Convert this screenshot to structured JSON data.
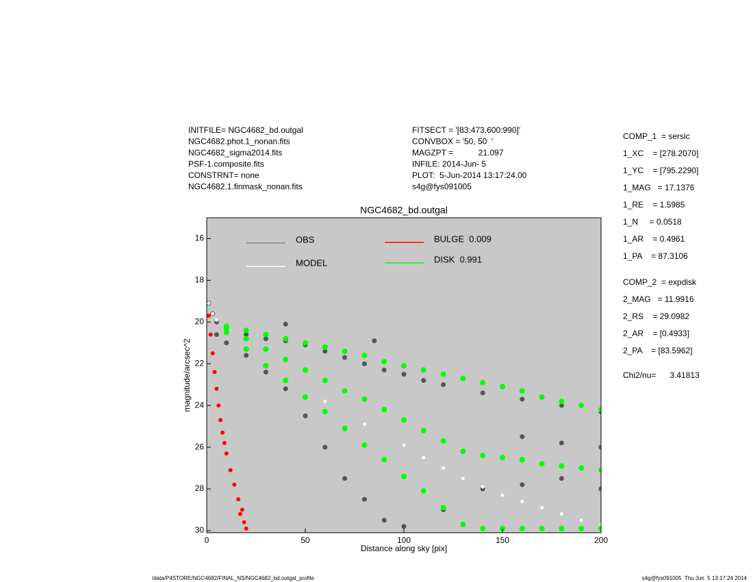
{
  "chart_data": {
    "type": "scatter",
    "title": "NGC4682_bd.outgal",
    "xlabel": "Distance along sky [pix]",
    "ylabel": "magnitude/arcsec^2",
    "xlim": [
      0,
      200
    ],
    "ylim": [
      15,
      30.1
    ],
    "y_inverted": true,
    "xticks": [
      0,
      50,
      100,
      150,
      200
    ],
    "yticks": [
      16,
      18,
      20,
      22,
      24,
      26,
      28,
      30
    ],
    "background": "#c8c8c8",
    "series": [
      {
        "name": "OBS",
        "color": "#555555",
        "x": [
          1,
          3,
          5,
          5,
          10,
          10,
          20,
          20,
          30,
          30,
          40,
          40,
          40,
          50,
          50,
          60,
          60,
          70,
          70,
          80,
          80,
          85,
          90,
          90,
          100,
          100,
          110,
          120,
          120,
          140,
          140,
          160,
          160,
          160,
          180,
          180,
          180,
          200,
          200,
          200
        ],
        "values": [
          19.1,
          19.6,
          20.0,
          20.6,
          20.2,
          21.0,
          20.6,
          21.6,
          20.8,
          22.4,
          20.9,
          23.2,
          20.1,
          21.1,
          24.5,
          21.4,
          26.0,
          21.7,
          27.5,
          22.0,
          28.5,
          20.9,
          22.3,
          29.5,
          22.5,
          29.8,
          22.8,
          23.0,
          29.0,
          23.4,
          28.0,
          23.7,
          25.5,
          27.8,
          24.0,
          25.8,
          27.5,
          24.3,
          26.0,
          28.0
        ]
      },
      {
        "name": "DISK  0.991",
        "color": "#00ff00",
        "x": [
          10,
          10,
          10,
          20,
          20,
          20,
          30,
          30,
          30,
          40,
          40,
          40,
          50,
          50,
          50,
          60,
          60,
          60,
          70,
          70,
          70,
          80,
          80,
          80,
          90,
          90,
          90,
          100,
          100,
          100,
          110,
          110,
          110,
          120,
          120,
          120,
          130,
          130,
          130,
          140,
          140,
          140,
          150,
          150,
          150,
          160,
          160,
          160,
          170,
          170,
          170,
          180,
          180,
          180,
          190,
          190,
          190,
          200,
          200,
          200
        ],
        "values": [
          20.2,
          20.3,
          20.5,
          20.4,
          20.8,
          21.3,
          20.6,
          21.3,
          22.1,
          20.8,
          21.8,
          22.8,
          21.0,
          22.3,
          23.6,
          21.2,
          22.8,
          24.3,
          21.4,
          23.3,
          25.1,
          21.6,
          23.7,
          25.9,
          21.9,
          24.2,
          26.6,
          22.1,
          24.7,
          27.4,
          22.3,
          25.2,
          28.1,
          22.5,
          25.7,
          28.9,
          22.7,
          26.2,
          29.7,
          22.9,
          26.4,
          29.9,
          23.1,
          26.5,
          29.9,
          23.3,
          26.6,
          29.9,
          23.6,
          26.8,
          29.9,
          23.8,
          26.9,
          29.9,
          24.0,
          27.0,
          29.9,
          24.2,
          27.1,
          29.9
        ]
      },
      {
        "name": "MODEL",
        "color": "#ffffff",
        "x": [
          1,
          3,
          5,
          60,
          80,
          100,
          110,
          120,
          130,
          140,
          150,
          160,
          170,
          180,
          190,
          200
        ],
        "values": [
          19.1,
          19.6,
          19.9,
          23.8,
          24.9,
          25.9,
          26.5,
          27.0,
          27.5,
          27.9,
          28.3,
          28.6,
          28.9,
          29.2,
          29.5,
          29.7
        ]
      },
      {
        "name": "BULGE  0.009",
        "color": "#ff0000",
        "x": [
          1,
          2,
          3,
          4,
          5,
          6,
          7,
          8,
          9,
          10,
          12,
          14,
          16,
          17,
          18,
          19,
          20
        ],
        "values": [
          19.7,
          20.6,
          21.5,
          22.4,
          23.2,
          24.0,
          24.7,
          25.3,
          25.8,
          26.3,
          27.1,
          27.8,
          28.5,
          29.2,
          29.0,
          29.6,
          29.9
        ]
      }
    ]
  },
  "header": {
    "left": [
      "INITFILE= NGC4682_bd.outgal",
      "NGC4682.phot.1_nonan.fits",
      "NGC4682_sigma2014.fits",
      "PSF-1.composite.fits",
      "CONSTRNT= none",
      "NGC4682.1.finmask_nonan.fits"
    ],
    "middle": [
      "FITSECT = '[83:473,600:990]'",
      "CONVBOX = '50, 50  '",
      "MAGZPT =           21.097",
      "INFILE: 2014-Jun- 5",
      "PLOT:  5-Jun-2014 13:17:24.00",
      "s4g@fys091005"
    ]
  },
  "parameters": [
    "COMP_1  = sersic",
    "1_XC    = [278.2070]",
    "1_YC    = [795.2290]",
    "1_MAG   = 17.1376",
    "1_RE    = 1.5985",
    "1_N     = 0.0518",
    "1_AR    = 0.4961",
    "1_PA    = 87.3106",
    "COMP_2  = expdisk",
    "2_MAG   = 11.9916",
    "2_RS    = 29.0982",
    "2_AR    = [0.4933]",
    "2_PA    = [83.5962]",
    "Chi2/nu=      3.41813"
  ],
  "footer": {
    "left": "/data/P4STORE/NGC4682/FINAL_NS/NGC4682_bd.outgal_profile",
    "right": "s4g@fys091005  Thu Jun  5 13:17:24 2014"
  }
}
